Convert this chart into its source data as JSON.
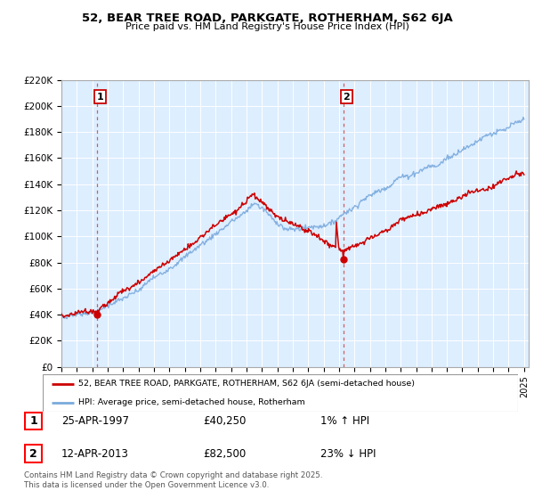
{
  "title": "52, BEAR TREE ROAD, PARKGATE, ROTHERHAM, S62 6JA",
  "subtitle": "Price paid vs. HM Land Registry's House Price Index (HPI)",
  "ylim": [
    0,
    220000
  ],
  "xmin": 1995,
  "xmax": 2025,
  "purchase1_year": 1997.32,
  "purchase1_price": 40250,
  "purchase2_year": 2013.28,
  "purchase2_price": 82500,
  "legend_line1": "52, BEAR TREE ROAD, PARKGATE, ROTHERHAM, S62 6JA (semi-detached house)",
  "legend_line2": "HPI: Average price, semi-detached house, Rotherham",
  "footnote": "Contains HM Land Registry data © Crown copyright and database right 2025.\nThis data is licensed under the Open Government Licence v3.0.",
  "line_color_red": "#cc0000",
  "line_color_blue": "#7aaadd",
  "plot_bg": "#ddeeff",
  "bg_white": "#ffffff"
}
